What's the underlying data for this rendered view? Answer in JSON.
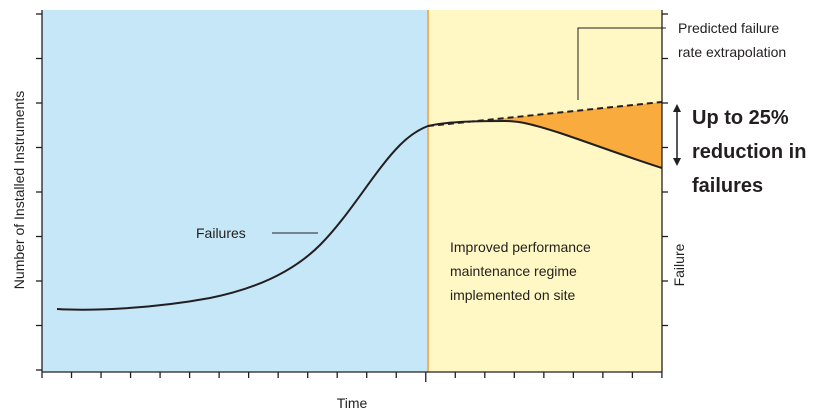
{
  "y_axis_label": "Number of Installed Instruments",
  "x_axis_label": "Time",
  "right_axis_label": "Failure",
  "curve_label": "Failures",
  "prediction_label": [
    "Predicted failure",
    "rate extrapolation"
  ],
  "highlight": [
    "Up to 25%",
    "reduction in",
    "failures"
  ],
  "regime_label": [
    "Improved performance",
    "maintenance regime",
    "implemented on site"
  ]
}
